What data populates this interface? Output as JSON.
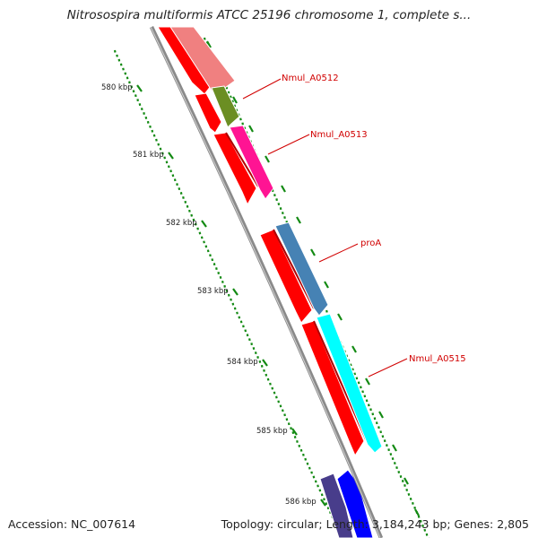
{
  "title": "Nitrosospira multiformis ATCC 25196 chromosome 1, complete s...",
  "footer": {
    "accession": "Accession: NC_007614",
    "summary": "Topology: circular; Length: 3,184,243 bp; Genes: 2,805"
  },
  "ticks": [
    "580 kbp",
    "581 kbp",
    "582 kbp",
    "583 kbp",
    "584 kbp",
    "585 kbp",
    "586 kbp"
  ],
  "gene_labels": [
    "Nmul_A0512",
    "Nmul_A0513",
    "proA",
    "Nmul_A0515"
  ],
  "colors": {
    "backbone": "#8a8a8a",
    "cds_track": "#ff0000",
    "tick_dots": "#138a13",
    "label": "#d10000",
    "Nmul_A0512": "#f08080",
    "Nmul_A0512_next": "#6b8e23",
    "Nmul_A0513": "#ff1493",
    "proA": "#4682b4",
    "Nmul_A0515": "#00ffff",
    "next_gene_a": "#483d8b",
    "next_gene_b": "#0000ff"
  }
}
